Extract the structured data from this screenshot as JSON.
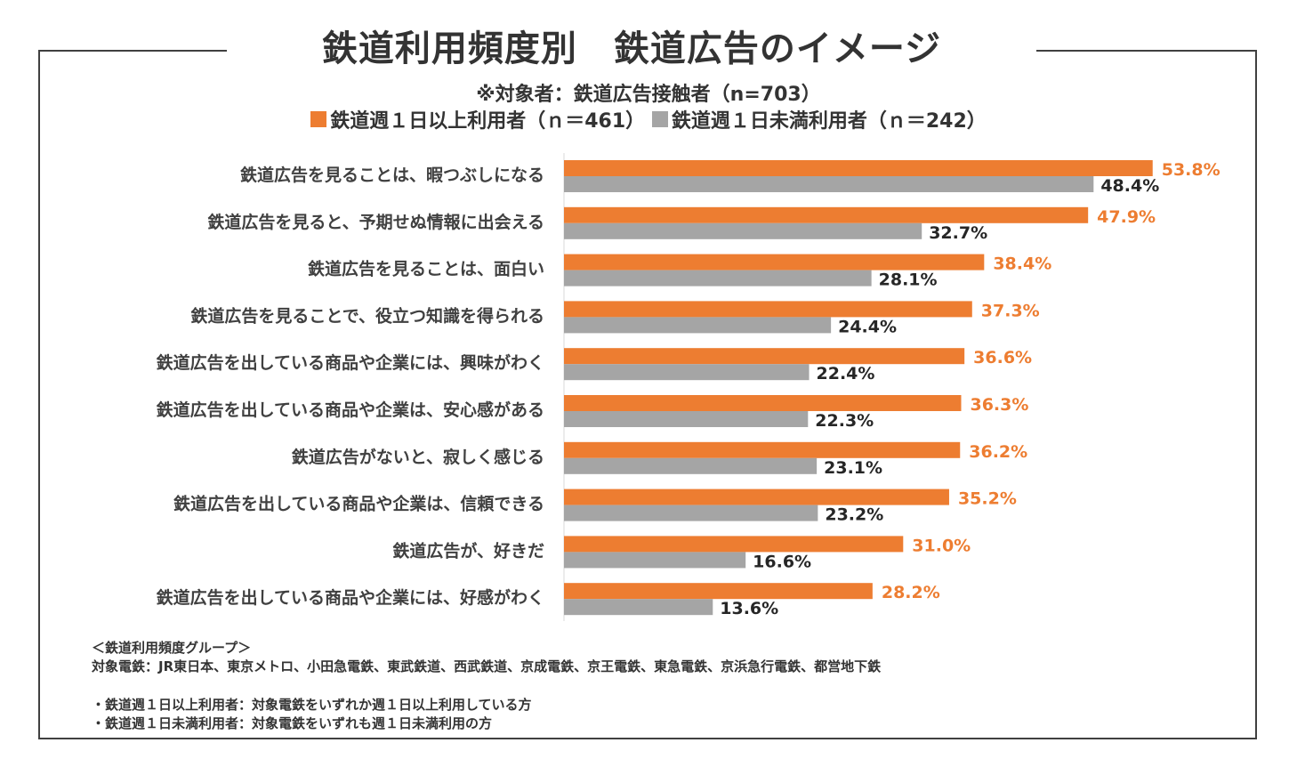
{
  "title": "鉄道利用頻度別　鉄道広告のイメージ",
  "subtitle": "※対象者：鉄道広告接触者（n=703）",
  "chart_data": {
    "type": "bar",
    "orientation": "horizontal",
    "title": "鉄道利用頻度別　鉄道広告のイメージ",
    "xlim": [
      0,
      60
    ],
    "value_suffix": "%",
    "categories": [
      "鉄道広告を見ることは、暇つぶしになる",
      "鉄道広告を見ると、予期せぬ情報に出会える",
      "鉄道広告を見ることは、面白い",
      "鉄道広告を見ることで、役立つ知識を得られる",
      "鉄道広告を出している商品や企業には、興味がわく",
      "鉄道広告を出している商品や企業は、安心感がある",
      "鉄道広告がないと、寂しく感じる",
      "鉄道広告を出している商品や企業は、信頼できる",
      "鉄道広告が、好きだ",
      "鉄道広告を出している商品や企業には、好感がわく"
    ],
    "series": [
      {
        "name": "鉄道週１日以上利用者（ｎ＝461）",
        "color": "#ED7D31",
        "values": [
          53.8,
          47.9,
          38.4,
          37.3,
          36.6,
          36.3,
          36.2,
          35.2,
          31.0,
          28.2
        ],
        "labels": [
          "53.8%",
          "47.9%",
          "38.4%",
          "37.3%",
          "36.6%",
          "36.3%",
          "36.2%",
          "35.2%",
          "31.0%",
          "28.2%"
        ]
      },
      {
        "name": "鉄道週１日未満利用者（ｎ＝242）",
        "color": "#A5A5A5",
        "values": [
          48.4,
          32.7,
          28.1,
          24.4,
          22.4,
          22.3,
          23.1,
          23.2,
          16.6,
          13.6
        ],
        "labels": [
          "48.4%",
          "32.7%",
          "28.1%",
          "24.4%",
          "22.4%",
          "22.3%",
          "23.1%",
          "23.2%",
          "16.6%",
          "13.6%"
        ]
      }
    ],
    "label_color_series2": "#262626"
  },
  "notes": {
    "group_heading": "＜鉄道利用頻度グループ＞",
    "target_lines": "対象電鉄：JR東日本、東京メトロ、小田急電鉄、東武鉄道、西武鉄道、京成電鉄、京王電鉄、東急電鉄、京浜急行電鉄、都営地下鉄",
    "def_frequent": "・鉄道週１日以上利用者：対象電鉄をいずれか週１日以上利用している方",
    "def_infrequent": "・鉄道週１日未満利用者：対象電鉄をいずれも週１日未満利用の方"
  }
}
